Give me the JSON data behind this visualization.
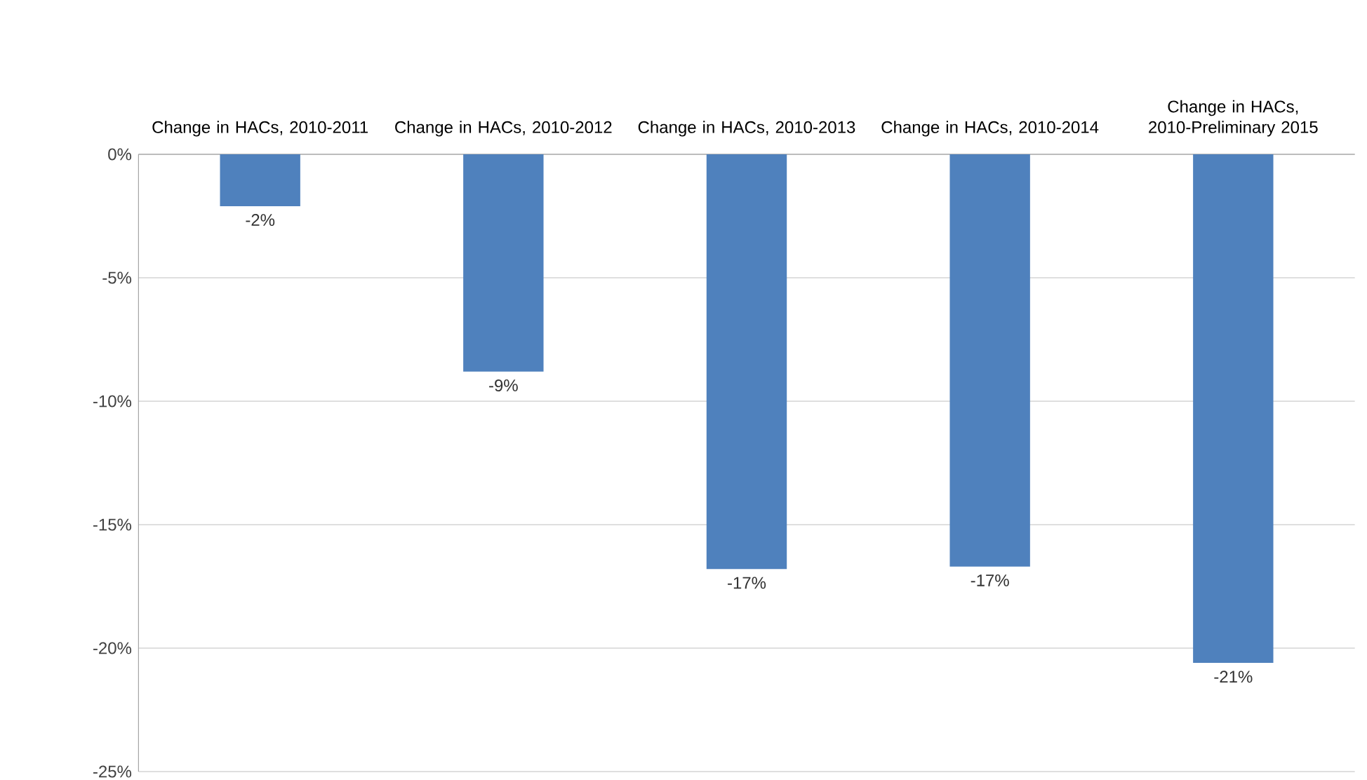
{
  "chart_data": {
    "type": "bar",
    "categories": [
      "Change in HACs, 2010-2011",
      "Change in HACs, 2010-2012",
      "Change in HACs, 2010-2013",
      "Change in HACs, 2010-2014",
      "Change in HACs, 2010-Preliminary 2015"
    ],
    "values": [
      -2.1,
      -8.8,
      -16.8,
      -16.7,
      -20.6
    ],
    "value_labels": [
      "-2%",
      "-9%",
      "-17%",
      "-17%",
      "-21%"
    ],
    "color": "#4f81bd",
    "ylim": [
      -25,
      0
    ],
    "yticks": [
      {
        "value": -25,
        "label": "-25%"
      },
      {
        "value": -20,
        "label": "-20%"
      },
      {
        "value": -15,
        "label": "-15%"
      },
      {
        "value": -10,
        "label": "-10%"
      },
      {
        "value": -5,
        "label": "-5%"
      },
      {
        "value": 0,
        "label": "0%"
      }
    ],
    "grid": "y"
  }
}
